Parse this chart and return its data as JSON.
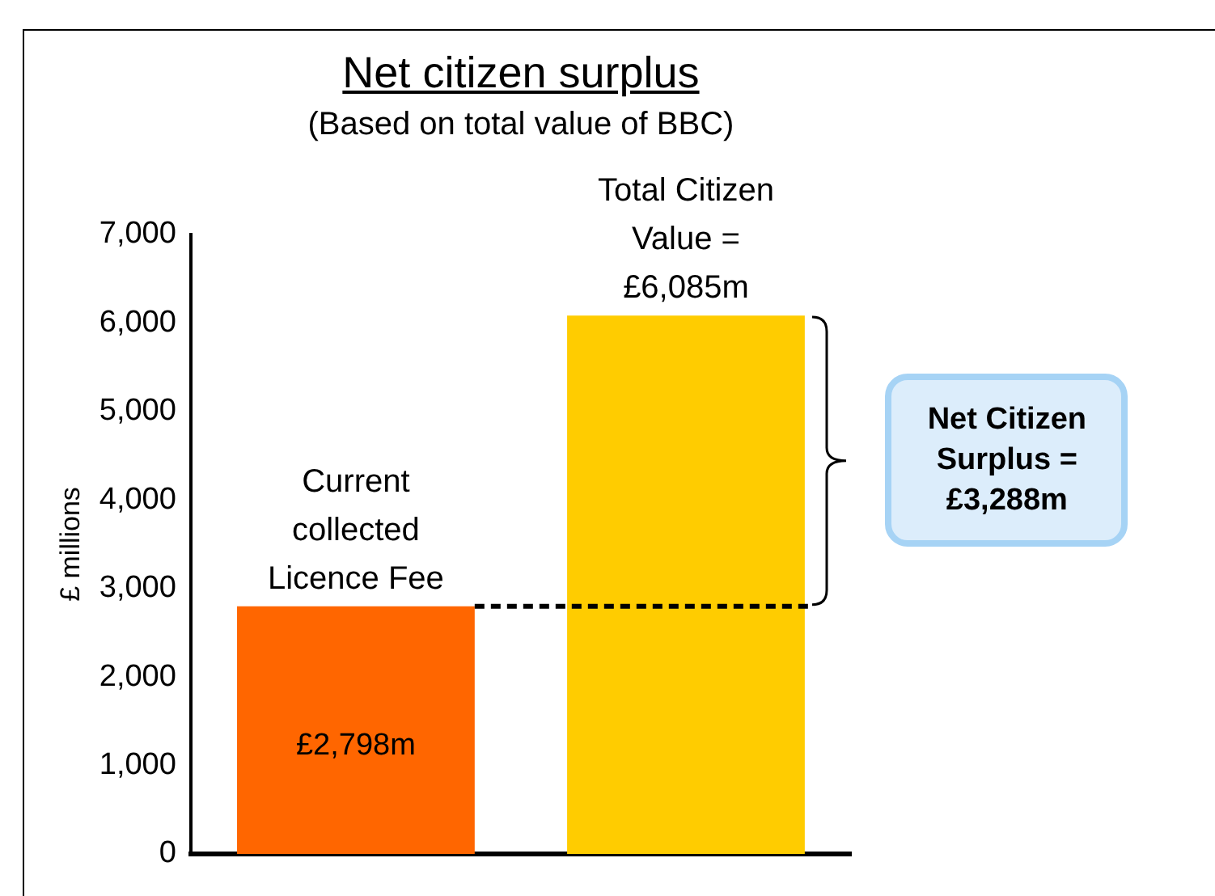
{
  "chart_data": {
    "type": "bar",
    "title": "Net citizen surplus",
    "subtitle": "(Based on total value of BBC)",
    "ylabel": "£ millions",
    "categories": [
      null,
      null
    ],
    "values": [
      2798,
      6085
    ],
    "colors": [
      "#ff6600",
      "#ffcc00"
    ],
    "value_labels": [
      "£2,798m",
      null
    ],
    "ylim": [
      0,
      7000
    ],
    "yticks": [
      0,
      {
        "value": 1000,
        "label": "1,000"
      },
      {
        "value": 2000,
        "label": "2,000"
      },
      {
        "value": 3000,
        "label": "3,000"
      },
      {
        "value": 4000,
        "label": "4,000"
      },
      {
        "value": 5000,
        "label": "5,000"
      },
      {
        "value": 6000,
        "label": "6,000"
      },
      {
        "value": 7000,
        "label": "7,000"
      }
    ],
    "grid": false,
    "legend": false,
    "ref_lines": [
      {
        "axis": "y",
        "value": 2798,
        "line_style": "dashed",
        "color": "#000000"
      }
    ],
    "annotations": [
      {
        "text": "Current collected Licence Fee",
        "y": 2798
      },
      {
        "text": "Total Citizen Value = £6,085m",
        "y": 6085
      },
      "Net Citizen Surplus = £3,288m"
    ]
  }
}
